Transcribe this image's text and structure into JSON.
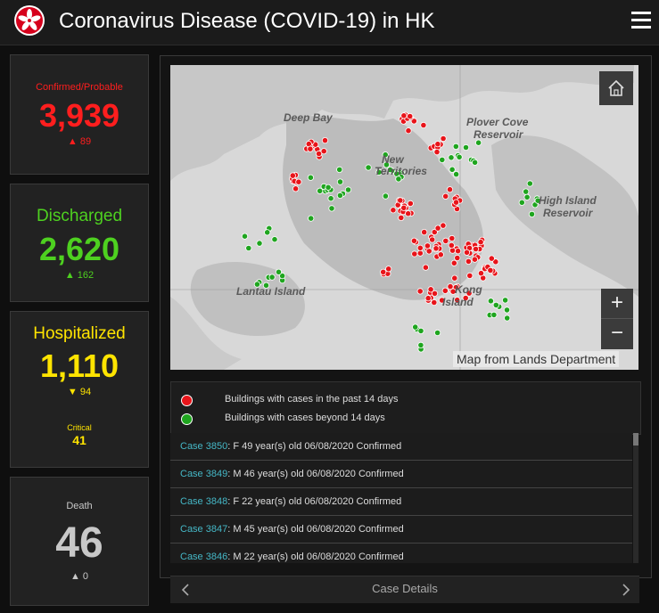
{
  "header": {
    "title": "Coronavirus Disease (COVID-19) in HK",
    "logo_icon": "hk-emblem-icon",
    "menu_icon": "hamburger-menu-icon"
  },
  "cards": {
    "confirmed": {
      "label": "Confirmed/Probable",
      "value": "3,939",
      "change": "89",
      "color": "#ff1e1e"
    },
    "discharged": {
      "label": "Discharged",
      "value": "2,620",
      "change": "162",
      "color": "#4ed120"
    },
    "hospitalized": {
      "label": "Hospitalized",
      "value": "1,110",
      "change": "94",
      "critical_label": "Critical",
      "critical_value": "41",
      "color": "#ffe400"
    },
    "death": {
      "label": "Death",
      "value": "46",
      "change": "0",
      "color": "#c8c8c8"
    }
  },
  "map": {
    "labels": [
      "Deep Bay",
      "Plover Cove",
      "Reservoir",
      "New",
      "Territories",
      "High Island",
      "Reservoir",
      "Lantau Island",
      "Kong",
      "Island"
    ],
    "attribution": "Map from Lands Department",
    "zoom_in": "+",
    "zoom_out": "−",
    "colors": {
      "recent": "#e8141a",
      "older": "#1fa51f"
    }
  },
  "legend": [
    {
      "label": "Buildings with cases in the past 14 days",
      "color": "#e8141a"
    },
    {
      "label": "Buildings with cases beyond 14 days",
      "color": "#1fa51f"
    }
  ],
  "cases": [
    {
      "id": "Case 3850",
      "detail": ": F  49 year(s) old  06/08/2020 Confirmed"
    },
    {
      "id": "Case 3849",
      "detail": ": M  46 year(s) old  06/08/2020 Confirmed"
    },
    {
      "id": "Case 3848",
      "detail": ": F  22 year(s) old  06/08/2020 Confirmed"
    },
    {
      "id": "Case 3847",
      "detail": ": M  45 year(s) old  06/08/2020 Confirmed"
    },
    {
      "id": "Case 3846",
      "detail": ": M  22 year(s) old  06/08/2020 Confirmed"
    }
  ],
  "footer": {
    "label": "Case Details"
  }
}
